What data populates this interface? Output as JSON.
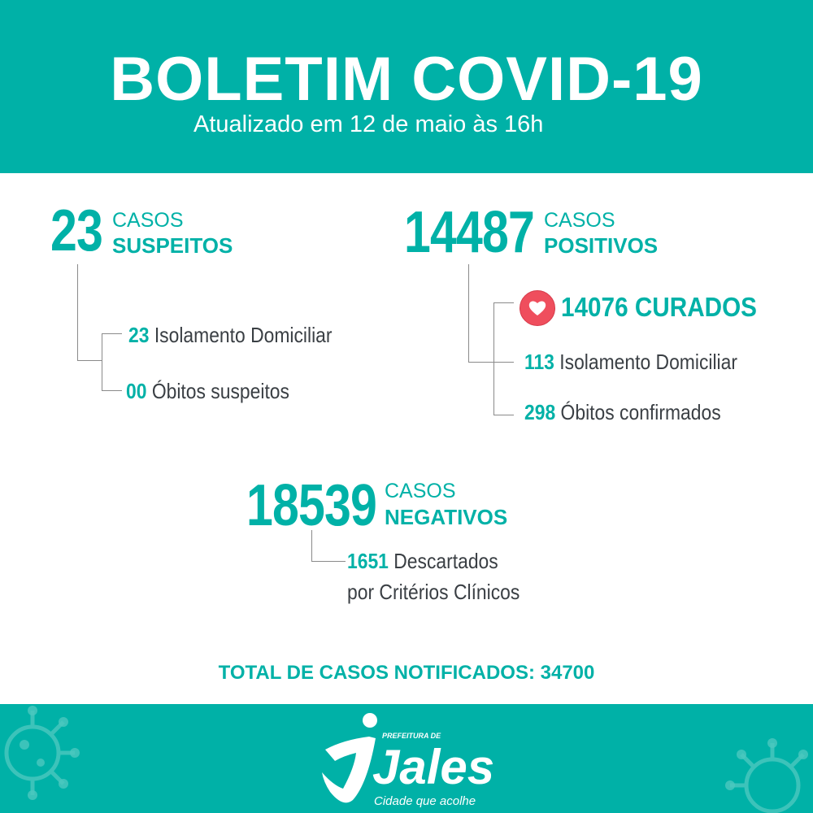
{
  "header": {
    "title": "BOLETIM COVID-19",
    "subtitle": "Atualizado em 12 de maio às 16h"
  },
  "suspeitos": {
    "count": "23",
    "casos_label": "CASOS",
    "kind_label": "SUSPEITOS",
    "items": [
      {
        "value": "23",
        "label": "Isolamento Domiciliar"
      },
      {
        "value": "00",
        "label": "Óbitos suspeitos"
      }
    ]
  },
  "positivos": {
    "count": "14487",
    "casos_label": "CASOS",
    "kind_label": "POSITIVOS",
    "curados": {
      "value": "14076",
      "label": "CURADOS",
      "icon": "heart-icon"
    },
    "items": [
      {
        "value": "113",
        "label": "Isolamento Domiciliar"
      },
      {
        "value": "298",
        "label": "Óbitos confirmados"
      }
    ]
  },
  "negativos": {
    "count": "18539",
    "casos_label": "CASOS",
    "kind_label": "NEGATIVOS",
    "descartados": {
      "value": "1651",
      "label_line1": "Descartados",
      "label_line2": "por Critérios Clínicos"
    }
  },
  "total": {
    "text": "TOTAL DE CASOS NOTIFICADOS: 34700"
  },
  "footer": {
    "logo_top": "PREFEITURA DE",
    "logo_name": "Jales",
    "logo_tagline": "Cidade que acolhe"
  },
  "colors": {
    "brand": "#00b1a7",
    "heart": "#ef4e5d",
    "text": "#3a3f44"
  }
}
